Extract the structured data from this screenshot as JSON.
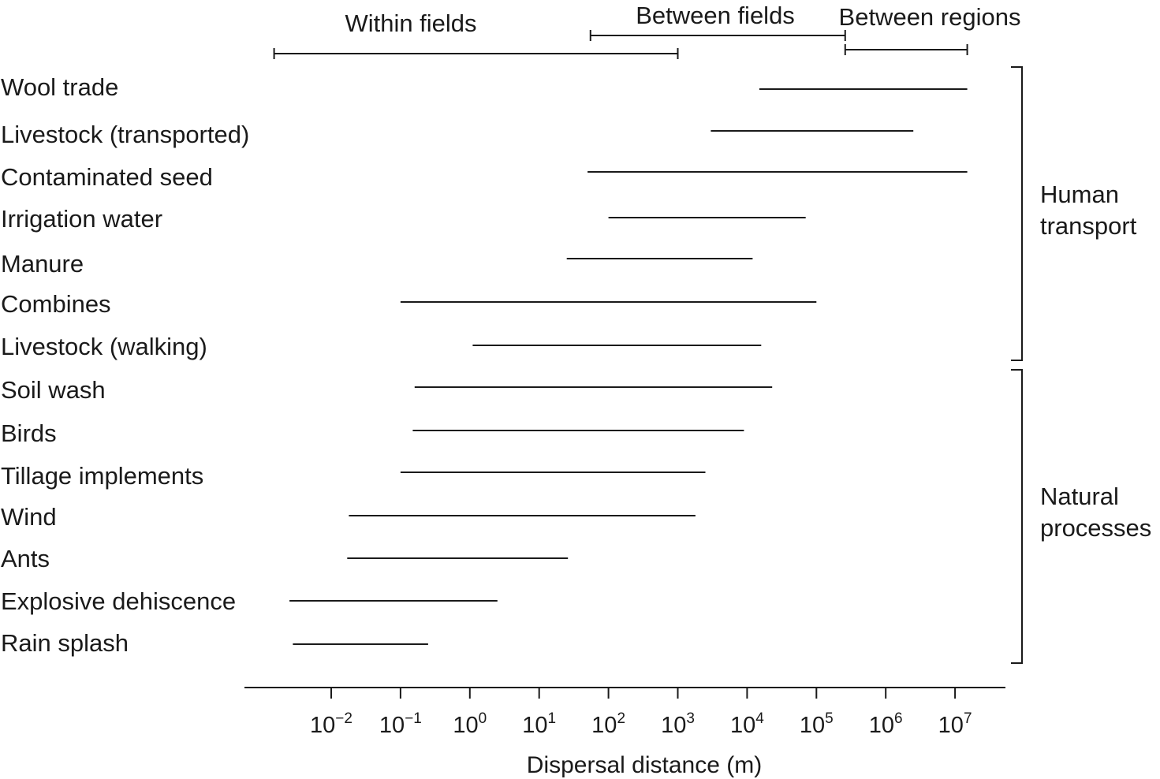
{
  "chart_data": {
    "type": "range",
    "x_scale": "log10",
    "xlabel": "Dispersal distance (m)",
    "x_ticks": [
      {
        "base": "10",
        "exp": "−2",
        "value": 0.01
      },
      {
        "base": "10",
        "exp": "−1",
        "value": 0.1
      },
      {
        "base": "10",
        "exp": "0",
        "value": 1
      },
      {
        "base": "10",
        "exp": "1",
        "value": 10
      },
      {
        "base": "10",
        "exp": "2",
        "value": 100
      },
      {
        "base": "10",
        "exp": "3",
        "value": 1000
      },
      {
        "base": "10",
        "exp": "4",
        "value": 10000
      },
      {
        "base": "10",
        "exp": "5",
        "value": 100000
      },
      {
        "base": "10",
        "exp": "6",
        "value": 1000000
      },
      {
        "base": "10",
        "exp": "7",
        "value": 10000000
      }
    ],
    "xlim": [
      0.001,
      100000000
    ],
    "scales": [
      {
        "label": "Within fields",
        "min": 0.0015,
        "max": 1000
      },
      {
        "label": "Between fields",
        "min": 55,
        "max": 260000
      },
      {
        "label": "Between regions",
        "min": 260000,
        "max": 15000000
      }
    ],
    "categories": [
      "Wool trade",
      "Livestock (transported)",
      "Contaminated seed",
      "Irrigation water",
      "Manure",
      "Combines",
      "Livestock (walking)",
      "Soil wash",
      "Birds",
      "Tillage implements",
      "Wind",
      "Ants",
      "Explosive dehiscence",
      "Rain splash"
    ],
    "ranges": [
      {
        "min": 15000,
        "max": 15000000
      },
      {
        "min": 3000,
        "max": 2500000
      },
      {
        "min": 50,
        "max": 15000000
      },
      {
        "min": 100,
        "max": 70000
      },
      {
        "min": 25,
        "max": 12000
      },
      {
        "min": 0.1,
        "max": 100000
      },
      {
        "min": 1.1,
        "max": 16000
      },
      {
        "min": 0.16,
        "max": 23000
      },
      {
        "min": 0.15,
        "max": 9000
      },
      {
        "min": 0.1,
        "max": 2500
      },
      {
        "min": 0.018,
        "max": 1800
      },
      {
        "min": 0.017,
        "max": 26
      },
      {
        "min": 0.0025,
        "max": 2.5
      },
      {
        "min": 0.0028,
        "max": 0.25
      }
    ],
    "groups": [
      {
        "label_lines": [
          "Human",
          "transport"
        ],
        "from": 0,
        "to": 6
      },
      {
        "label_lines": [
          "Natural",
          "processes"
        ],
        "from": 7,
        "to": 13
      }
    ]
  }
}
